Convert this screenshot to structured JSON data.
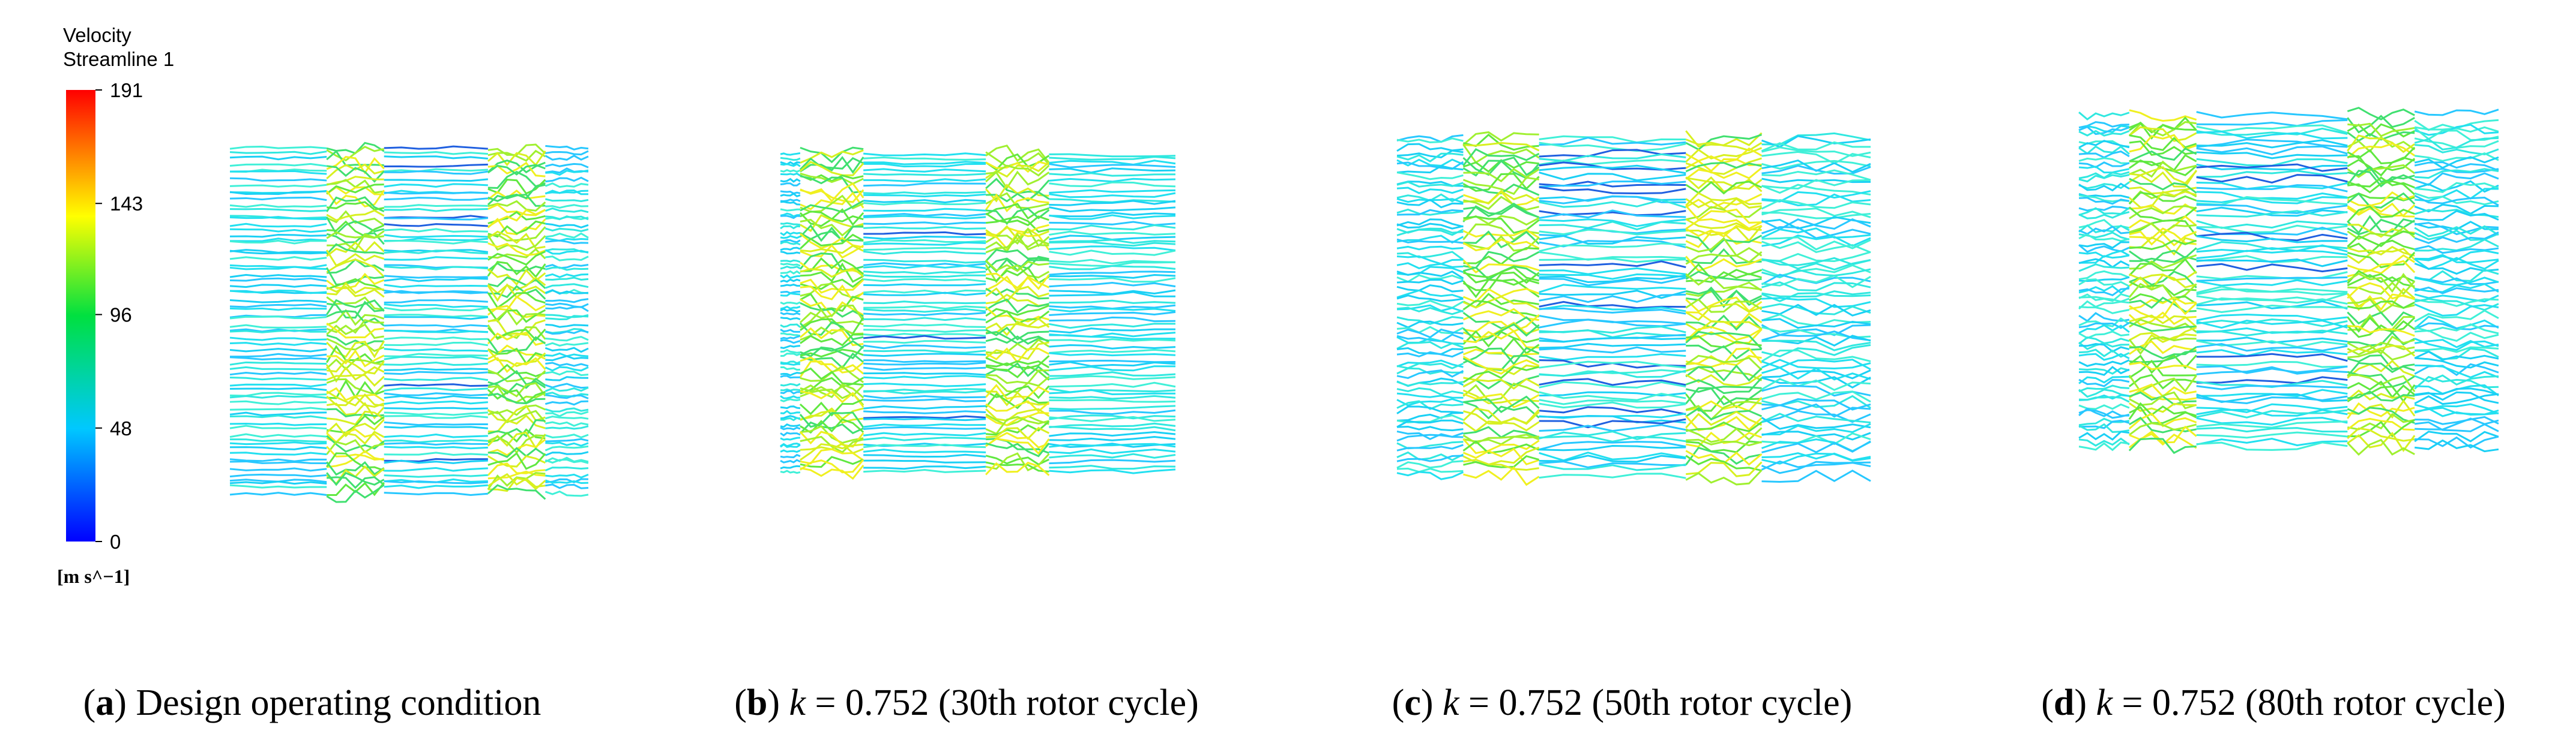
{
  "colorbar": {
    "title": [
      "Velocity",
      "Streamline 1"
    ],
    "ticks": [
      191,
      143,
      96,
      48,
      0
    ],
    "unit": "[m s^−1]"
  },
  "panels": [
    {
      "caption": [
        {
          "text": "(",
          "style": "normal"
        },
        {
          "text": "a",
          "style": "bold"
        },
        {
          "text": ") Design operating condition",
          "style": "normal"
        }
      ]
    },
    {
      "caption": [
        {
          "text": "(",
          "style": "normal"
        },
        {
          "text": "b",
          "style": "bold"
        },
        {
          "text": ") ",
          "style": "normal"
        },
        {
          "text": "k",
          "style": "italic"
        },
        {
          "text": " = 0.752 (30th rotor cycle)",
          "style": "normal"
        }
      ]
    },
    {
      "caption": [
        {
          "text": "(",
          "style": "normal"
        },
        {
          "text": "c",
          "style": "bold"
        },
        {
          "text": ") ",
          "style": "normal"
        },
        {
          "text": "k",
          "style": "italic"
        },
        {
          "text": " = 0.752 (50th rotor cycle)",
          "style": "normal"
        }
      ]
    },
    {
      "caption": [
        {
          "text": "(",
          "style": "normal"
        },
        {
          "text": "d",
          "style": "bold"
        },
        {
          "text": ") ",
          "style": "normal"
        },
        {
          "text": "k",
          "style": "italic"
        },
        {
          "text": " = 0.752 (80th rotor cycle)",
          "style": "normal"
        }
      ]
    }
  ]
}
